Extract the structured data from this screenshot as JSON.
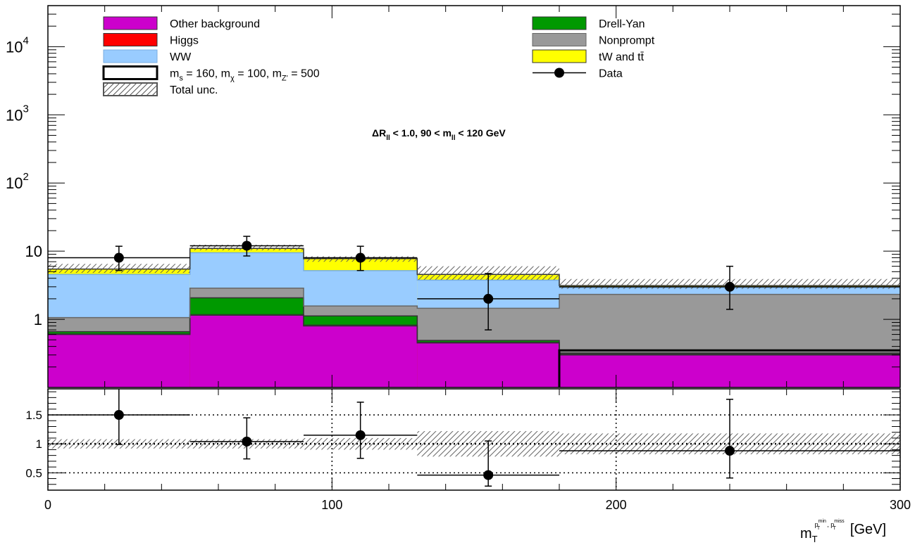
{
  "chart_data": {
    "type": "bar",
    "annotation": {
      "prefix": "ΔR",
      "sub1": "ll",
      "mid": " < 1.0, 90 < m",
      "sub2": "ll",
      "suffix": " < 120 GeV"
    },
    "x_axis": {
      "label_main": "m",
      "label_sub": "T",
      "label_sup_a": "p",
      "label_sup_a_sup": "min",
      "label_sup_a_sub": "T",
      "label_sup_sep": ", ",
      "label_sup_b": "p",
      "label_sup_b_sup": "miss",
      "label_sup_b_sub": "T",
      "label_unit": "[GeV]",
      "range": [
        0,
        300
      ],
      "ticks": [
        0,
        100,
        200,
        300
      ]
    },
    "main_y_axis": {
      "scale": "log",
      "range": [
        0.1,
        40000
      ],
      "tick_labels": [
        {
          "value": 1,
          "label": "1"
        },
        {
          "value": 10,
          "label": "10"
        },
        {
          "value": 100,
          "base": "10",
          "exp": "2"
        },
        {
          "value": 1000,
          "base": "10",
          "exp": "3"
        },
        {
          "value": 10000,
          "base": "10",
          "exp": "4"
        }
      ]
    },
    "ratio_y_axis": {
      "range": [
        0.2,
        1.95
      ],
      "tick_labels": [
        {
          "value": 0.5,
          "label": "0.5"
        },
        {
          "value": 1,
          "label": "1"
        },
        {
          "value": 1.5,
          "label": "1.5"
        }
      ]
    },
    "bins": [
      [
        0,
        50
      ],
      [
        50,
        90
      ],
      [
        90,
        130
      ],
      [
        130,
        180
      ],
      [
        180,
        300
      ]
    ],
    "series": [
      {
        "name": "Other background",
        "color": "#cc00cc",
        "values": [
          0.6,
          1.15,
          0.8,
          0.45,
          0.3
        ]
      },
      {
        "name": "Higgs",
        "color": "#ff0000",
        "values": [
          0.01,
          0.02,
          0.02,
          0.01,
          0.01
        ]
      },
      {
        "name": "Drell-Yan",
        "color": "#009900",
        "values": [
          0.05,
          0.9,
          0.3,
          0.03,
          0.01
        ]
      },
      {
        "name": "Nonprompt",
        "color": "#999999",
        "values": [
          0.4,
          0.8,
          0.45,
          0.96,
          2.0
        ]
      },
      {
        "name": "WW",
        "color": "#99ccff",
        "values": [
          3.5,
          6.6,
          3.6,
          2.3,
          0.6
        ]
      },
      {
        "name": "tW and tt̄",
        "color": "#ffff00",
        "values": [
          0.9,
          1.5,
          2.6,
          0.8,
          0.2
        ]
      }
    ],
    "total_unc": [
      [
        4.8,
        6.5
      ],
      [
        10.3,
        12.4
      ],
      [
        7.0,
        8.4
      ],
      [
        3.8,
        6.0
      ],
      [
        2.8,
        3.9
      ]
    ],
    "signal": {
      "name_main": "m",
      "sub1": "s",
      "seg2": " = 160, m",
      "sub2": "χ",
      "seg3": " = 100, m",
      "sub3": "Z'",
      "seg4": " = 500",
      "color": "#000000",
      "values": [
        0,
        0,
        0,
        0,
        0.35
      ]
    },
    "data": {
      "name": "Data",
      "points": [
        {
          "x": 25,
          "xlo": 0,
          "xhi": 50,
          "y": 8,
          "ylo": 5.2,
          "yhi": 11.8
        },
        {
          "x": 70,
          "xlo": 50,
          "xhi": 90,
          "y": 12,
          "ylo": 8.5,
          "yhi": 16.5
        },
        {
          "x": 110,
          "xlo": 90,
          "xhi": 130,
          "y": 8,
          "ylo": 5.2,
          "yhi": 11.8
        },
        {
          "x": 155,
          "xlo": 130,
          "xhi": 180,
          "y": 2,
          "ylo": 0.7,
          "yhi": 4.7
        },
        {
          "x": 240,
          "xlo": 180,
          "xhi": 300,
          "y": 3,
          "ylo": 1.4,
          "yhi": 6.0
        }
      ]
    },
    "ratio": {
      "points": [
        {
          "x": 25,
          "xlo": 0,
          "xhi": 50,
          "y": 1.5,
          "ylo": 0.99,
          "yhi": 2.0
        },
        {
          "x": 70,
          "xlo": 50,
          "xhi": 90,
          "y": 1.04,
          "ylo": 0.74,
          "yhi": 1.45
        },
        {
          "x": 110,
          "xlo": 90,
          "xhi": 130,
          "y": 1.15,
          "ylo": 0.75,
          "yhi": 1.72
        },
        {
          "x": 155,
          "xlo": 130,
          "xhi": 180,
          "y": 0.46,
          "ylo": 0.27,
          "yhi": 1.05
        },
        {
          "x": 240,
          "xlo": 180,
          "xhi": 300,
          "y": 0.88,
          "ylo": 0.41,
          "yhi": 1.77
        }
      ],
      "unc_band": [
        [
          0.92,
          1.08
        ],
        [
          0.92,
          1.08
        ],
        [
          0.9,
          1.1
        ],
        [
          0.78,
          1.22
        ],
        [
          0.82,
          1.18
        ]
      ],
      "reference_lines": [
        0.5,
        1.0,
        1.5
      ]
    },
    "legend": {
      "placement": "top",
      "total_unc_label": "Total unc.",
      "data_label": "Data"
    },
    "grid": "ratio-panel dotted"
  }
}
